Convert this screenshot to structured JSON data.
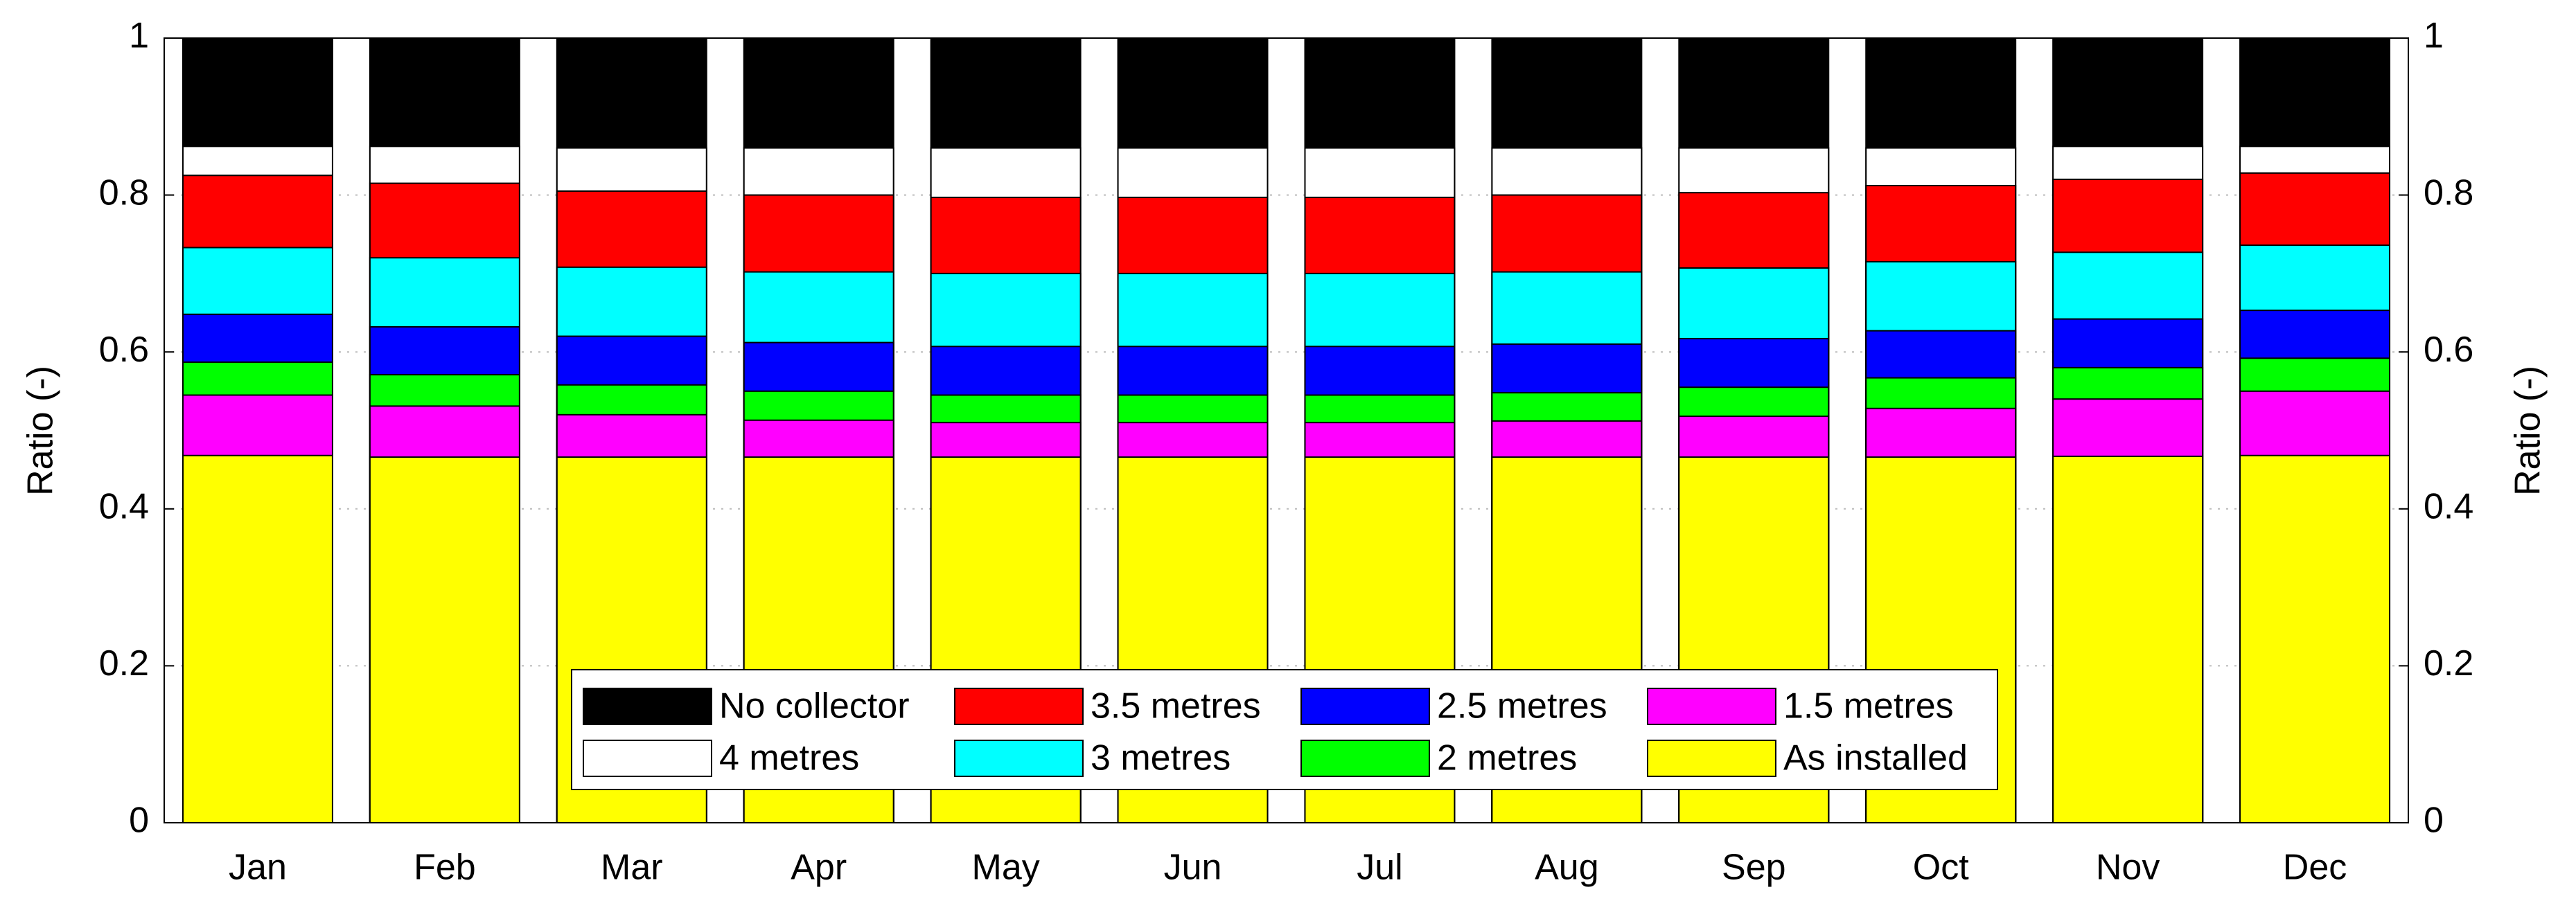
{
  "chart_data": {
    "type": "bar",
    "mode": "overlay",
    "categories": [
      "Jan",
      "Feb",
      "Mar",
      "Apr",
      "May",
      "Jun",
      "Jul",
      "Aug",
      "Sep",
      "Oct",
      "Nov",
      "Dec"
    ],
    "y_label": "Ratio (-)",
    "y2_label": "Ratio (-)",
    "ylim": [
      0,
      1
    ],
    "yticks": [
      0,
      0.2,
      0.4,
      0.6,
      0.8,
      1
    ],
    "grid": true,
    "legend": "bottom",
    "series": [
      {
        "name": "No collector",
        "color": "#000000",
        "values": [
          1,
          1,
          1,
          1,
          1,
          1,
          1,
          1,
          1,
          1,
          1,
          1
        ]
      },
      {
        "name": "4 metres",
        "color": "#ffffff",
        "values": [
          0.862,
          0.862,
          0.86,
          0.86,
          0.86,
          0.86,
          0.86,
          0.86,
          0.86,
          0.86,
          0.862,
          0.862
        ]
      },
      {
        "name": "3.5 metres",
        "color": "#ff0000",
        "values": [
          0.825,
          0.815,
          0.805,
          0.8,
          0.797,
          0.797,
          0.797,
          0.8,
          0.803,
          0.812,
          0.82,
          0.828
        ]
      },
      {
        "name": "3 metres",
        "color": "#00ffff",
        "values": [
          0.733,
          0.72,
          0.708,
          0.702,
          0.7,
          0.7,
          0.7,
          0.702,
          0.707,
          0.715,
          0.727,
          0.736
        ]
      },
      {
        "name": "2.5 metres",
        "color": "#0000ff",
        "values": [
          0.648,
          0.632,
          0.62,
          0.612,
          0.607,
          0.607,
          0.607,
          0.61,
          0.617,
          0.627,
          0.642,
          0.653
        ]
      },
      {
        "name": "2 metres",
        "color": "#00ff00",
        "values": [
          0.587,
          0.571,
          0.558,
          0.55,
          0.545,
          0.545,
          0.545,
          0.548,
          0.555,
          0.567,
          0.58,
          0.592
        ]
      },
      {
        "name": "1.5 metres",
        "color": "#ff00ff",
        "values": [
          0.545,
          0.531,
          0.52,
          0.513,
          0.51,
          0.51,
          0.51,
          0.512,
          0.518,
          0.528,
          0.54,
          0.55
        ]
      },
      {
        "name": "As installed",
        "color": "#ffff00",
        "values": [
          0.468,
          0.466,
          0.466,
          0.466,
          0.466,
          0.466,
          0.466,
          0.466,
          0.466,
          0.466,
          0.467,
          0.468
        ]
      }
    ]
  }
}
